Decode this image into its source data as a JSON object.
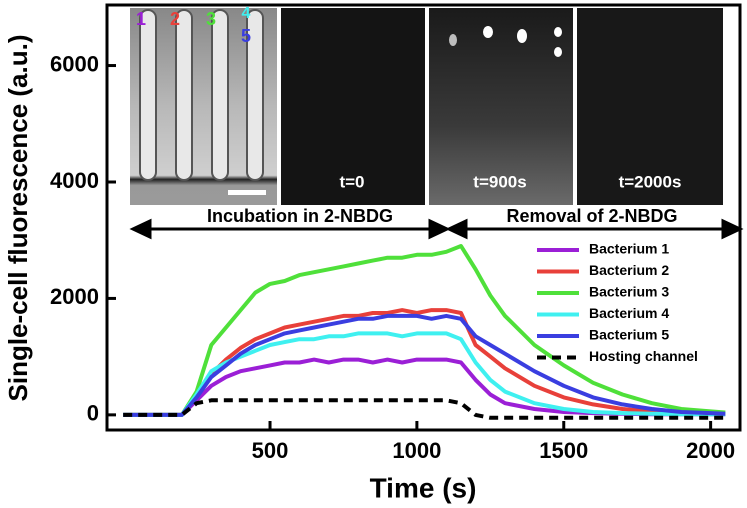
{
  "chart_data": {
    "type": "line",
    "xlabel": "Time (s)",
    "ylabel": "Single-cell fluorescence (a.u.)",
    "x": [
      0,
      100,
      200,
      250,
      300,
      350,
      400,
      450,
      500,
      550,
      600,
      650,
      700,
      750,
      800,
      850,
      900,
      950,
      1000,
      1050,
      1100,
      1150,
      1200,
      1250,
      1300,
      1400,
      1500,
      1600,
      1700,
      1800,
      1900,
      2000,
      2050
    ],
    "xlim": [
      -55,
      2100
    ],
    "ylim": [
      -260,
      7040
    ],
    "xticks": [
      500,
      1000,
      1500,
      2000
    ],
    "yticks": [
      0,
      2000,
      4000,
      6000
    ],
    "legend": "right",
    "series": [
      {
        "name": "Bacterium 1",
        "color": "#9b1fd6",
        "values": [
          0,
          0,
          0,
          250,
          500,
          650,
          750,
          800,
          850,
          900,
          900,
          950,
          900,
          950,
          950,
          900,
          950,
          900,
          950,
          950,
          950,
          900,
          600,
          350,
          200,
          100,
          50,
          30,
          20,
          10,
          10,
          10,
          10
        ]
      },
      {
        "name": "Bacterium 2",
        "color": "#e8403a",
        "values": [
          0,
          0,
          0,
          300,
          700,
          950,
          1150,
          1300,
          1400,
          1500,
          1550,
          1600,
          1650,
          1700,
          1700,
          1750,
          1750,
          1800,
          1750,
          1800,
          1800,
          1750,
          1200,
          1000,
          800,
          500,
          300,
          180,
          100,
          60,
          30,
          20,
          20
        ]
      },
      {
        "name": "Bacterium 3",
        "color": "#4fe03a",
        "values": [
          0,
          0,
          0,
          400,
          1200,
          1500,
          1800,
          2100,
          2250,
          2300,
          2400,
          2450,
          2500,
          2550,
          2600,
          2650,
          2700,
          2700,
          2750,
          2750,
          2800,
          2900,
          2500,
          2050,
          1700,
          1200,
          850,
          550,
          350,
          200,
          100,
          60,
          40
        ]
      },
      {
        "name": "Bacterium 4",
        "color": "#3ff0f0",
        "values": [
          0,
          0,
          0,
          350,
          750,
          900,
          1000,
          1100,
          1200,
          1250,
          1300,
          1300,
          1350,
          1350,
          1400,
          1400,
          1400,
          1350,
          1400,
          1400,
          1400,
          1300,
          900,
          600,
          400,
          200,
          100,
          50,
          30,
          20,
          10,
          10,
          10
        ]
      },
      {
        "name": "Bacterium 5",
        "color": "#3a3ee0",
        "values": [
          0,
          0,
          0,
          300,
          650,
          850,
          1050,
          1200,
          1300,
          1400,
          1450,
          1500,
          1550,
          1600,
          1650,
          1650,
          1700,
          1700,
          1700,
          1650,
          1700,
          1650,
          1350,
          1200,
          1050,
          750,
          500,
          300,
          180,
          100,
          50,
          30,
          20
        ]
      },
      {
        "name": "Hosting channel",
        "color": "#000000",
        "dashed": true,
        "values": [
          0,
          0,
          0,
          200,
          250,
          250,
          250,
          250,
          250,
          250,
          250,
          250,
          250,
          250,
          250,
          250,
          250,
          250,
          250,
          250,
          250,
          200,
          0,
          -50,
          -50,
          -50,
          -50,
          -50,
          -50,
          -50,
          -50,
          -50,
          -50
        ]
      }
    ],
    "annotations": [
      {
        "text": "1",
        "color": "#9b1fd6"
      },
      {
        "text": "2",
        "color": "#e8403a"
      },
      {
        "text": "3",
        "color": "#4fe03a"
      },
      {
        "text": "4",
        "color": "#3ff0f0"
      },
      {
        "text": "5",
        "color": "#3a3ee0"
      },
      {
        "text": "t=0",
        "color": "#ffffff"
      },
      {
        "text": "t=900s",
        "color": "#ffffff"
      },
      {
        "text": "t=2000s",
        "color": "#ffffff"
      },
      {
        "text": "Incubation in 2-NBDG",
        "color": "#000000"
      },
      {
        "text": "Removal of 2-NBDG",
        "color": "#000000"
      }
    ]
  }
}
